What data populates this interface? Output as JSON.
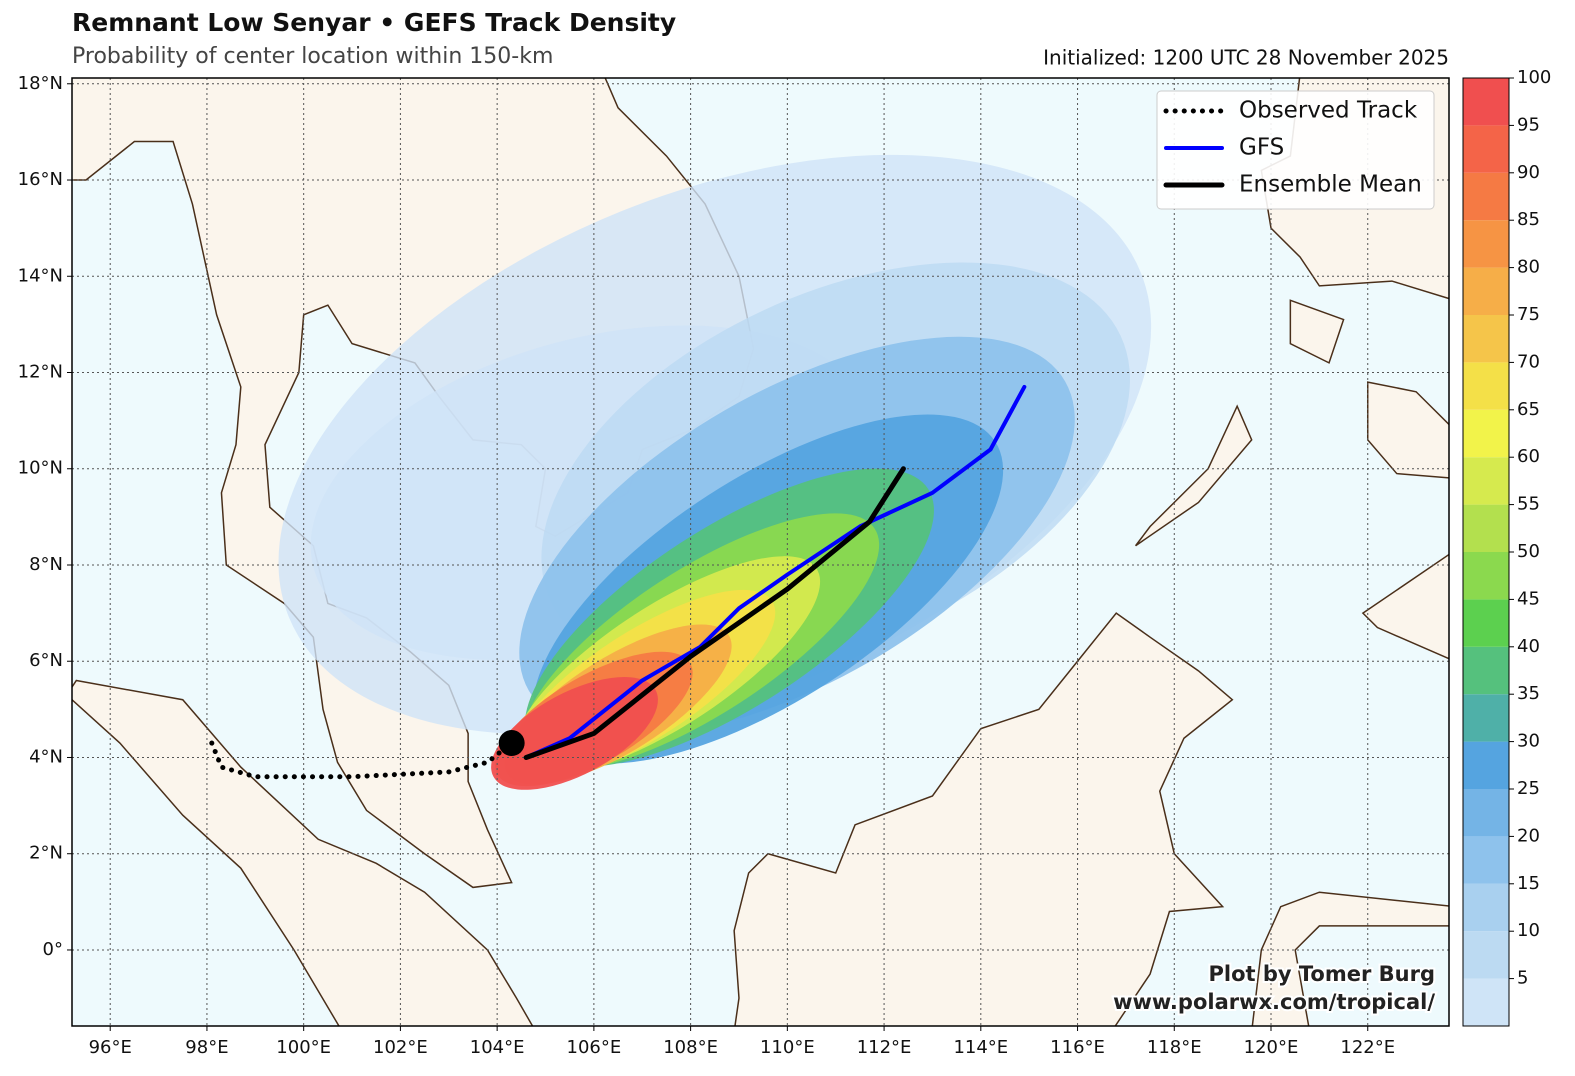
{
  "chart_data": {
    "type": "track-map",
    "title": "Remnant Low Senyar • GEFS Track Density",
    "subtitle": "Probability of center location within 150-km",
    "initialized": "Initialized: 1200 UTC 28 November 2025",
    "credit": [
      "Plot by Tomer Burg",
      "www.polarwx.com/tropical/"
    ],
    "xlim": [
      95.21,
      123.68
    ],
    "ylim": [
      -1.58,
      18.12
    ],
    "xticks": [
      {
        "value": 96,
        "label": "96°E"
      },
      {
        "value": 98,
        "label": "98°E"
      },
      {
        "value": 100,
        "label": "100°E"
      },
      {
        "value": 102,
        "label": "102°E"
      },
      {
        "value": 104,
        "label": "104°E"
      },
      {
        "value": 106,
        "label": "106°E"
      },
      {
        "value": 108,
        "label": "108°E"
      },
      {
        "value": 110,
        "label": "110°E"
      },
      {
        "value": 112,
        "label": "112°E"
      },
      {
        "value": 114,
        "label": "114°E"
      },
      {
        "value": 116,
        "label": "116°E"
      },
      {
        "value": 118,
        "label": "118°E"
      },
      {
        "value": 120,
        "label": "120°E"
      },
      {
        "value": 122,
        "label": "122°E"
      }
    ],
    "yticks": [
      {
        "value": 0,
        "label": "0°"
      },
      {
        "value": 2,
        "label": "2°N"
      },
      {
        "value": 4,
        "label": "4°N"
      },
      {
        "value": 6,
        "label": "6°N"
      },
      {
        "value": 8,
        "label": "8°N"
      },
      {
        "value": 10,
        "label": "10°N"
      },
      {
        "value": 12,
        "label": "12°N"
      },
      {
        "value": 14,
        "label": "14°N"
      },
      {
        "value": 16,
        "label": "16°N"
      },
      {
        "value": 18,
        "label": "18°N"
      }
    ],
    "grid": true,
    "legend_position": "upper right",
    "series": [
      {
        "name": "Observed Track",
        "color": "#000000",
        "style": "dotted",
        "x": [
          98.1,
          98.3,
          99.0,
          101.0,
          103.0,
          103.8,
          104.3
        ],
        "values": [
          4.3,
          3.8,
          3.6,
          3.6,
          3.7,
          3.9,
          4.3
        ]
      },
      {
        "name": "GFS",
        "color": "#0000ff",
        "style": "solid",
        "x": [
          104.6,
          105.5,
          107.0,
          108.2,
          109.0,
          110.0,
          111.5,
          113.0,
          114.2,
          114.9
        ],
        "values": [
          4.0,
          4.4,
          5.6,
          6.3,
          7.1,
          7.8,
          8.8,
          9.5,
          10.4,
          11.7
        ]
      },
      {
        "name": "Ensemble Mean",
        "color": "#000000",
        "style": "solid",
        "x": [
          104.6,
          106.0,
          108.0,
          110.0,
          111.7,
          112.4
        ],
        "values": [
          4.0,
          4.5,
          6.1,
          7.5,
          8.9,
          10.0
        ]
      }
    ],
    "current_position": {
      "x": 104.3,
      "y": 4.3
    },
    "colorbar": {
      "clim": [
        0,
        100
      ],
      "levels": [
        0,
        5,
        10,
        15,
        20,
        25,
        30,
        35,
        40,
        45,
        50,
        55,
        60,
        65,
        70,
        75,
        80,
        85,
        90,
        95,
        100
      ],
      "colors": [
        "#cfe4f7",
        "#bcdaf2",
        "#a9d0ef",
        "#8ec2ec",
        "#74b4e6",
        "#55a4e0",
        "#4fb0a8",
        "#55c17d",
        "#5cd04f",
        "#8bd94e",
        "#b3e04e",
        "#d6ea4e",
        "#f2f34a",
        "#f4e048",
        "#f5c54a",
        "#f6ae48",
        "#f69444",
        "#f57a44",
        "#f46448",
        "#f04f4f"
      ],
      "ticks": [
        5,
        10,
        15,
        20,
        25,
        30,
        35,
        40,
        45,
        50,
        55,
        60,
        65,
        70,
        75,
        80,
        85,
        90,
        95,
        100
      ]
    }
  }
}
